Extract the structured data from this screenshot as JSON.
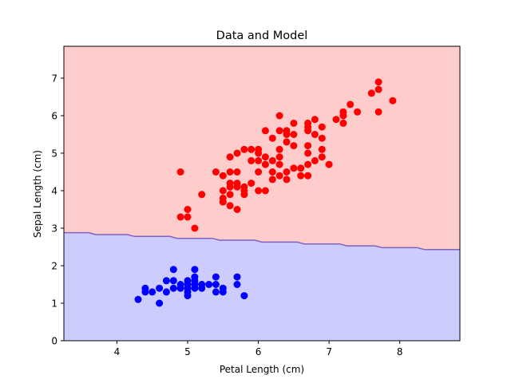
{
  "chart_data": {
    "type": "scatter",
    "title": "Data and Model",
    "xlabel": "Petal Length (cm)",
    "ylabel": "Sepal Length (cm)",
    "xlim": [
      3.25,
      8.85
    ],
    "ylim": [
      0,
      7.85
    ],
    "x_ticks": [
      4,
      5,
      6,
      7,
      8
    ],
    "y_ticks": [
      0,
      1,
      2,
      3,
      4,
      5,
      6,
      7
    ],
    "grid": false,
    "legend": "none",
    "regions": [
      {
        "label_color": "#ffcccc",
        "side": "above"
      },
      {
        "label_color": "#ccccff",
        "side": "below"
      }
    ],
    "boundary_color": "#8060c0",
    "boundary": [
      [
        3.25,
        2.88
      ],
      [
        3.6,
        2.88
      ],
      [
        3.7,
        2.83
      ],
      [
        4.15,
        2.83
      ],
      [
        4.25,
        2.78
      ],
      [
        4.75,
        2.78
      ],
      [
        4.85,
        2.73
      ],
      [
        5.35,
        2.73
      ],
      [
        5.45,
        2.68
      ],
      [
        5.95,
        2.68
      ],
      [
        6.05,
        2.63
      ],
      [
        6.55,
        2.63
      ],
      [
        6.65,
        2.58
      ],
      [
        7.15,
        2.58
      ],
      [
        7.25,
        2.53
      ],
      [
        7.65,
        2.53
      ],
      [
        7.75,
        2.48
      ],
      [
        8.25,
        2.48
      ],
      [
        8.35,
        2.43
      ],
      [
        8.85,
        2.43
      ]
    ],
    "series": [
      {
        "color": "#0000ff",
        "points": [
          [
            4.3,
            1.1
          ],
          [
            4.4,
            1.3
          ],
          [
            4.4,
            1.4
          ],
          [
            4.5,
            1.3
          ],
          [
            4.6,
            1.0
          ],
          [
            4.6,
            1.4
          ],
          [
            4.7,
            1.3
          ],
          [
            4.7,
            1.6
          ],
          [
            4.8,
            1.4
          ],
          [
            4.8,
            1.6
          ],
          [
            4.8,
            1.9
          ],
          [
            4.9,
            1.4
          ],
          [
            4.9,
            1.5
          ],
          [
            5.0,
            1.2
          ],
          [
            5.0,
            1.3
          ],
          [
            5.0,
            1.4
          ],
          [
            5.0,
            1.5
          ],
          [
            5.0,
            1.6
          ],
          [
            5.1,
            1.4
          ],
          [
            5.1,
            1.5
          ],
          [
            5.1,
            1.6
          ],
          [
            5.1,
            1.7
          ],
          [
            5.1,
            1.9
          ],
          [
            5.2,
            1.4
          ],
          [
            5.2,
            1.5
          ],
          [
            5.3,
            1.5
          ],
          [
            5.4,
            1.3
          ],
          [
            5.4,
            1.5
          ],
          [
            5.4,
            1.7
          ],
          [
            5.5,
            1.3
          ],
          [
            5.5,
            1.4
          ],
          [
            5.7,
            1.5
          ],
          [
            5.7,
            1.7
          ],
          [
            5.8,
            1.2
          ]
        ]
      },
      {
        "color": "#ff0000",
        "points": [
          [
            4.9,
            4.5
          ],
          [
            4.9,
            3.3
          ],
          [
            5.0,
            3.5
          ],
          [
            5.0,
            3.3
          ],
          [
            5.1,
            3.0
          ],
          [
            5.2,
            3.9
          ],
          [
            5.4,
            4.5
          ],
          [
            5.5,
            4.4
          ],
          [
            5.5,
            4.0
          ],
          [
            5.5,
            3.8
          ],
          [
            5.5,
            3.7
          ],
          [
            5.6,
            4.5
          ],
          [
            5.6,
            4.2
          ],
          [
            5.6,
            4.1
          ],
          [
            5.6,
            3.9
          ],
          [
            5.6,
            3.6
          ],
          [
            5.6,
            4.9
          ],
          [
            5.7,
            5.0
          ],
          [
            5.7,
            4.5
          ],
          [
            5.7,
            4.2
          ],
          [
            5.7,
            4.1
          ],
          [
            5.7,
            3.5
          ],
          [
            5.8,
            5.1
          ],
          [
            5.8,
            4.1
          ],
          [
            5.8,
            4.0
          ],
          [
            5.8,
            3.9
          ],
          [
            5.9,
            5.1
          ],
          [
            5.9,
            4.8
          ],
          [
            5.9,
            4.2
          ],
          [
            6.0,
            5.1
          ],
          [
            6.0,
            5.0
          ],
          [
            6.0,
            4.5
          ],
          [
            6.0,
            4.0
          ],
          [
            6.0,
            4.8
          ],
          [
            6.1,
            4.9
          ],
          [
            6.1,
            4.7
          ],
          [
            6.1,
            4.0
          ],
          [
            6.1,
            5.6
          ],
          [
            6.2,
            4.5
          ],
          [
            6.2,
            4.3
          ],
          [
            6.2,
            4.8
          ],
          [
            6.2,
            5.4
          ],
          [
            6.3,
            6.0
          ],
          [
            6.3,
            5.6
          ],
          [
            6.3,
            5.1
          ],
          [
            6.3,
            4.9
          ],
          [
            6.3,
            4.7
          ],
          [
            6.3,
            4.4
          ],
          [
            6.4,
            5.6
          ],
          [
            6.4,
            5.5
          ],
          [
            6.4,
            5.3
          ],
          [
            6.4,
            4.5
          ],
          [
            6.4,
            4.3
          ],
          [
            6.5,
            5.8
          ],
          [
            6.5,
            5.5
          ],
          [
            6.5,
            5.2
          ],
          [
            6.5,
            4.6
          ],
          [
            6.6,
            4.6
          ],
          [
            6.6,
            4.4
          ],
          [
            6.7,
            5.8
          ],
          [
            6.7,
            5.7
          ],
          [
            6.7,
            5.6
          ],
          [
            6.7,
            5.2
          ],
          [
            6.7,
            5.0
          ],
          [
            6.7,
            4.7
          ],
          [
            6.7,
            4.4
          ],
          [
            6.8,
            5.9
          ],
          [
            6.8,
            5.5
          ],
          [
            6.8,
            4.8
          ],
          [
            6.9,
            5.7
          ],
          [
            6.9,
            5.4
          ],
          [
            6.9,
            5.1
          ],
          [
            6.9,
            4.9
          ],
          [
            7.0,
            4.7
          ],
          [
            7.1,
            5.9
          ],
          [
            7.2,
            6.1
          ],
          [
            7.2,
            6.0
          ],
          [
            7.2,
            5.8
          ],
          [
            7.3,
            6.3
          ],
          [
            7.4,
            6.1
          ],
          [
            7.6,
            6.6
          ],
          [
            7.7,
            6.9
          ],
          [
            7.7,
            6.7
          ],
          [
            7.7,
            6.1
          ],
          [
            7.9,
            6.4
          ]
        ]
      }
    ]
  }
}
